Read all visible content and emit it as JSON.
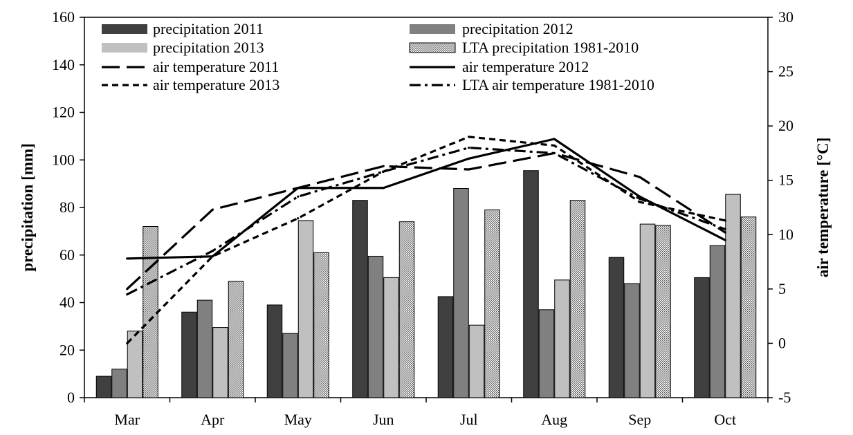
{
  "chart_data": {
    "type": "bar",
    "categories": [
      "Mar",
      "Apr",
      "May",
      "Jun",
      "Jul",
      "Aug",
      "Sep",
      "Oct"
    ],
    "series": [
      {
        "name": "precipitation 2011",
        "kind": "bar",
        "axis": "left",
        "pattern": "solid",
        "color": "#404040",
        "values": [
          9,
          36,
          39,
          83,
          42.5,
          95.5,
          59,
          50.5
        ]
      },
      {
        "name": "precipitation 2012",
        "kind": "bar",
        "axis": "left",
        "pattern": "solid",
        "color": "#808080",
        "values": [
          12,
          41,
          27,
          59.5,
          88,
          37,
          48,
          64
        ]
      },
      {
        "name": "precipitation 2013",
        "kind": "bar",
        "axis": "left",
        "pattern": "solid",
        "color": "#c0c0c0",
        "values": [
          28,
          29.5,
          74.5,
          50.5,
          30.5,
          49.5,
          73,
          85.5
        ]
      },
      {
        "name": "LTA precipitation 1981-2010",
        "kind": "bar",
        "axis": "left",
        "pattern": "hatched",
        "color": "#e0e0e0",
        "values": [
          72,
          49,
          61,
          74,
          79,
          83,
          72.5,
          76
        ]
      },
      {
        "name": "air temperature 2011",
        "kind": "line",
        "axis": "right",
        "dash": "long-dash",
        "values": [
          5,
          12.3,
          14.3,
          16.3,
          16,
          17.5,
          15.3,
          10.2
        ]
      },
      {
        "name": "air temperature 2012",
        "kind": "line",
        "axis": "right",
        "dash": "solid",
        "values": [
          7.8,
          8,
          14.3,
          14.3,
          17,
          18.8,
          13.5,
          9.5
        ]
      },
      {
        "name": "air temperature 2013",
        "kind": "line",
        "axis": "right",
        "dash": "short-dash",
        "values": [
          0,
          8,
          11.5,
          15.8,
          19,
          18.2,
          13,
          11.3
        ]
      },
      {
        "name": "LTA air temperature 1981-2010",
        "kind": "line",
        "axis": "right",
        "dash": "dash-dot",
        "values": [
          4.5,
          8.5,
          13.5,
          15.8,
          18,
          17.5,
          13.3,
          10.5
        ]
      }
    ],
    "ylabel": "precipitation [mm]",
    "y2label": "air temperature [°C]",
    "ylim": [
      0,
      160
    ],
    "yticks": [
      0,
      20,
      40,
      60,
      80,
      100,
      120,
      140,
      160
    ],
    "y2lim": [
      -5,
      30
    ],
    "y2ticks": [
      -5,
      0,
      5,
      10,
      15,
      20,
      25,
      30
    ],
    "grid": false,
    "legend_position": "top, inside plot, 4 rows x 2 columns"
  }
}
